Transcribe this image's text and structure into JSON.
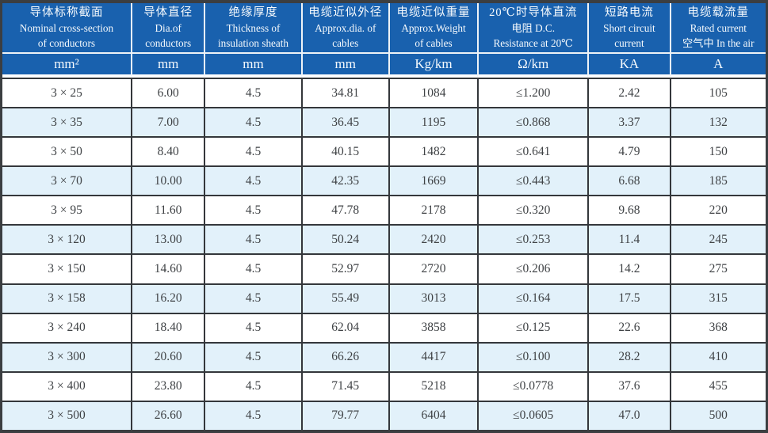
{
  "colors": {
    "header_bg": "#1961ae",
    "header_text": "#f6fafd",
    "row_bg": "#ffffff",
    "row_alt_bg": "#e2f1fa",
    "grid_line": "#34373b",
    "header_separator": "#eef3f7",
    "outer_border": "#3b3e41",
    "data_text": "#3f4245"
  },
  "table": {
    "columns": [
      {
        "id": "cross-section",
        "lines": [
          "导体标称截面",
          "Nominal cross-section",
          "of conductors"
        ],
        "unit": "mm²"
      },
      {
        "id": "conductor-dia",
        "lines": [
          "导体直径",
          "Dia.of",
          "conductors"
        ],
        "unit": "mm"
      },
      {
        "id": "insulation-thickness",
        "lines": [
          "绝缘厚度",
          "Thickness of",
          "insulation sheath"
        ],
        "unit": "mm"
      },
      {
        "id": "cable-dia",
        "lines": [
          "电缆近似外径",
          "Approx.dia. of",
          "cables"
        ],
        "unit": "mm"
      },
      {
        "id": "cable-weight",
        "lines": [
          "电缆近似重量",
          "Approx.Weight",
          "of cables"
        ],
        "unit": "Kg/km"
      },
      {
        "id": "dc-resistance",
        "lines": [
          "20℃时导体直流",
          "电阻 D.C.",
          "Resistance at 20℃"
        ],
        "unit": "Ω/km"
      },
      {
        "id": "short-circuit",
        "lines": [
          "短路电流",
          "Short circuit",
          "current"
        ],
        "unit": "KA"
      },
      {
        "id": "rated-current",
        "lines": [
          "电缆载流量",
          "Rated current",
          "空气中 In the air"
        ],
        "unit": "A"
      }
    ],
    "rows": [
      [
        "3 × 25",
        "6.00",
        "4.5",
        "34.81",
        "1084",
        "≤1.200",
        "2.42",
        "105"
      ],
      [
        "3 × 35",
        "7.00",
        "4.5",
        "36.45",
        "1195",
        "≤0.868",
        "3.37",
        "132"
      ],
      [
        "3 × 50",
        "8.40",
        "4.5",
        "40.15",
        "1482",
        "≤0.641",
        "4.79",
        "150"
      ],
      [
        "3 × 70",
        "10.00",
        "4.5",
        "42.35",
        "1669",
        "≤0.443",
        "6.68",
        "185"
      ],
      [
        "3 × 95",
        "11.60",
        "4.5",
        "47.78",
        "2178",
        "≤0.320",
        "9.68",
        "220"
      ],
      [
        "3 × 120",
        "13.00",
        "4.5",
        "50.24",
        "2420",
        "≤0.253",
        "11.4",
        "245"
      ],
      [
        "3 × 150",
        "14.60",
        "4.5",
        "52.97",
        "2720",
        "≤0.206",
        "14.2",
        "275"
      ],
      [
        "3 × 158",
        "16.20",
        "4.5",
        "55.49",
        "3013",
        "≤0.164",
        "17.5",
        "315"
      ],
      [
        "3 × 240",
        "18.40",
        "4.5",
        "62.04",
        "3858",
        "≤0.125",
        "22.6",
        "368"
      ],
      [
        "3 × 300",
        "20.60",
        "4.5",
        "66.26",
        "4417",
        "≤0.100",
        "28.2",
        "410"
      ],
      [
        "3 × 400",
        "23.80",
        "4.5",
        "71.45",
        "5218",
        "≤0.0778",
        "37.6",
        "455"
      ],
      [
        "3 × 500",
        "26.60",
        "4.5",
        "79.77",
        "6404",
        "≤0.0605",
        "47.0",
        "500"
      ]
    ]
  }
}
